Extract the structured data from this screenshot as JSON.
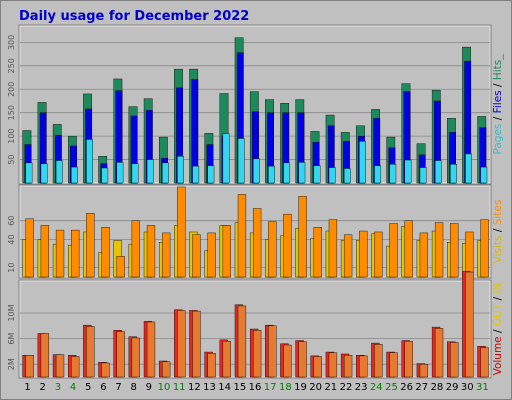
{
  "chart_data": {
    "type": "bar",
    "title": "Daily usage for December 2022",
    "categories": [
      "1",
      "2",
      "3",
      "4",
      "5",
      "6",
      "7",
      "8",
      "9",
      "10",
      "11",
      "12",
      "13",
      "14",
      "15",
      "16",
      "17",
      "18",
      "19",
      "20",
      "21",
      "22",
      "23",
      "24",
      "25",
      "26",
      "27",
      "28",
      "29",
      "30",
      "31"
    ],
    "weekend_days": [
      "3",
      "4",
      "10",
      "11",
      "17",
      "18",
      "24",
      "25",
      "31"
    ],
    "colors": {
      "hits": "#1e8a5c",
      "files": "#0000e6",
      "pages": "#33d6ee",
      "visits": "#e6c400",
      "sites": "#ff8c00",
      "kbin": "#e67a30",
      "kbout": "#e64040",
      "volume_bar": "#e8281e",
      "panel_bg": "#c0c0c0",
      "frame": "#c8c8c8",
      "title": "#0000cc",
      "weekday_label": "#000000",
      "weekend_label": "#008000"
    },
    "panels": [
      {
        "id": "hits",
        "ylabel_parts": [
          {
            "text": "Pages",
            "color": "#33bbcc"
          },
          {
            "text": " / ",
            "color": "#000000"
          },
          {
            "text": "Files",
            "color": "#0000cc"
          },
          {
            "text": " / ",
            "color": "#000000"
          },
          {
            "text": "Hits",
            "color": "#1e8a5c"
          },
          {
            "text": "_",
            "color": "#1e8a5c"
          }
        ],
        "yticks": [
          50,
          100,
          150,
          200,
          250,
          300
        ],
        "ylim": [
          0,
          335
        ],
        "series": [
          {
            "name": "Hits",
            "values": [
              112,
              172,
              125,
              100,
              190,
              57,
              222,
              163,
              180,
              98,
              243,
              243,
              106,
              191,
              310,
              195,
              178,
              170,
              178,
              110,
              145,
              108,
              122,
              157,
              98,
              212,
              84,
              198,
              138,
              290,
              142
            ]
          },
          {
            "name": "Files",
            "values": [
              82,
              150,
              102,
              79,
              158,
              41,
              197,
              143,
              155,
              53,
              203,
              221,
              82,
              101,
              278,
              152,
              150,
              150,
              150,
              87,
              122,
              89,
              100,
              138,
              75,
              195,
              60,
              175,
              108,
              260,
              118
            ]
          },
          {
            "name": "Pages",
            "values": [
              43,
              41,
              48,
              34,
              93,
              32,
              44,
              41,
              50,
              43,
              57,
              36,
              37,
              105,
              95,
              52,
              36,
              43,
              44,
              37,
              33,
              31,
              89,
              37,
              40,
              49,
              33,
              48,
              40,
              62,
              34
            ]
          }
        ]
      },
      {
        "id": "visits",
        "ylabel_parts": [
          {
            "text": "Visits",
            "color": "#d6b800"
          },
          {
            "text": " / ",
            "color": "#000000"
          },
          {
            "text": "Sites",
            "color": "#ff8c00"
          }
        ],
        "yticks": [
          10,
          40,
          60
        ],
        "ylim": [
          0,
          97
        ],
        "series": [
          {
            "name": "Visits",
            "values": [
              40,
              40,
              35,
              34,
              48,
              26,
              39,
              35,
              48,
              37,
              55,
              48,
              28,
              55,
              58,
              47,
              40,
              44,
              52,
              41,
              49,
              39,
              39,
              46,
              33,
              54,
              39,
              49,
              37,
              36,
              39
            ]
          },
          {
            "name": "Sites",
            "values": [
              62,
              55,
              50,
              50,
              68,
              53,
              22,
              60,
              55,
              47,
              96,
              45,
              47,
              55,
              88,
              73,
              59,
              67,
              86,
              53,
              61,
              45,
              49,
              48,
              57,
              60,
              47,
              58,
              57,
              48,
              61
            ]
          }
        ]
      },
      {
        "id": "volume",
        "ylabel_parts": [
          {
            "text": "Volume",
            "color": "#cc0000"
          },
          {
            "text": " / ",
            "color": "#000000"
          },
          {
            "text": "OUT",
            "color": "#e6c400"
          },
          {
            "text": " / ",
            "color": "#000000"
          },
          {
            "text": "IN",
            "color": "#e6c400"
          }
        ],
        "yticks_labels": [
          "2M",
          "6M",
          "10M"
        ],
        "yticks": [
          2,
          6,
          10
        ],
        "ylim": [
          0,
          15
        ],
        "series": [
          {
            "name": "Volume",
            "values": [
              3.4,
              6.8,
              3.5,
              3.4,
              8.1,
              2.3,
              7.3,
              6.3,
              8.7,
              2.5,
              10.5,
              10.4,
              3.9,
              5.8,
              11.3,
              7.5,
              8.1,
              5.2,
              5.7,
              3.3,
              3.9,
              3.6,
              3.4,
              5.3,
              3.9,
              5.7,
              2.1,
              7.8,
              5.5,
              16.5,
              4.8
            ]
          },
          {
            "name": "OUT",
            "values": [
              3.4,
              6.8,
              3.5,
              3.2,
              7.9,
              2.2,
              7.1,
              6.1,
              8.6,
              2.4,
              10.4,
              10.3,
              3.7,
              5.6,
              11.1,
              7.3,
              8.0,
              5.0,
              5.5,
              3.2,
              3.8,
              3.4,
              3.3,
              5.1,
              3.8,
              5.6,
              2.0,
              7.6,
              5.4,
              16.4,
              4.6
            ]
          }
        ]
      }
    ]
  }
}
